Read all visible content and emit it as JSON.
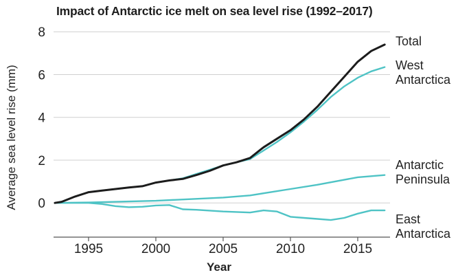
{
  "chart_data": {
    "type": "line",
    "title": "Impact of Antarctic ice melt on sea level rise (1992–2017)",
    "xlabel": "Year",
    "ylabel": "Average sea level rise (mm)",
    "xlim": [
      1992.4,
      2017.4
    ],
    "ylim": [
      -1.6,
      8.2
    ],
    "xticks": [
      1995,
      2000,
      2005,
      2010,
      2015
    ],
    "yticks": [
      0,
      2,
      4,
      6,
      8
    ],
    "grid": true,
    "legend": "direct labels at right",
    "series": [
      {
        "name": "Total",
        "color": "#1c1c1c",
        "label_lines": [
          "Total"
        ],
        "x": [
          1992.5,
          1993,
          1994,
          1995,
          1996,
          1997,
          1998,
          1999,
          2000,
          2001,
          2002,
          2003,
          2004,
          2005,
          2006,
          2007,
          2008,
          2009,
          2010,
          2011,
          2012,
          2013,
          2014,
          2015,
          2016,
          2017
        ],
        "y": [
          0,
          0.05,
          0.3,
          0.5,
          0.58,
          0.65,
          0.72,
          0.78,
          0.95,
          1.05,
          1.12,
          1.3,
          1.5,
          1.75,
          1.9,
          2.1,
          2.6,
          3.0,
          3.4,
          3.9,
          4.5,
          5.2,
          5.9,
          6.6,
          7.1,
          7.4
        ]
      },
      {
        "name": "West Antarctica",
        "color": "#4ec3c5",
        "label_lines": [
          "West",
          "Antarctica"
        ],
        "x": [
          1992.5,
          1993,
          1994,
          1995,
          1996,
          1997,
          1998,
          1999,
          2000,
          2001,
          2002,
          2003,
          2004,
          2005,
          2006,
          2007,
          2008,
          2009,
          2010,
          2011,
          2012,
          2013,
          2014,
          2015,
          2016,
          2017
        ],
        "y": [
          0,
          0.05,
          0.3,
          0.5,
          0.58,
          0.65,
          0.72,
          0.78,
          0.95,
          1.05,
          1.15,
          1.35,
          1.55,
          1.75,
          1.9,
          2.05,
          2.45,
          2.85,
          3.3,
          3.8,
          4.35,
          4.95,
          5.45,
          5.85,
          6.15,
          6.35
        ]
      },
      {
        "name": "Antarctic Peninsula",
        "color": "#4ec3c5",
        "label_lines": [
          "Antarctic",
          "Peninsula"
        ],
        "x": [
          1992.5,
          1995,
          2000,
          2005,
          2007,
          2010,
          2012,
          2015,
          2017
        ],
        "y": [
          0,
          0.02,
          0.1,
          0.25,
          0.35,
          0.65,
          0.85,
          1.2,
          1.3
        ]
      },
      {
        "name": "East Antarctica",
        "color": "#4ec3c5",
        "label_lines": [
          "East",
          "Antarctica"
        ],
        "x": [
          1992.5,
          1995,
          1996,
          1997,
          1998,
          1999,
          2000,
          2001,
          2002,
          2003,
          2005,
          2007,
          2008,
          2009,
          2010,
          2011,
          2012,
          2013,
          2014,
          2015,
          2016,
          2017
        ],
        "y": [
          0,
          0.0,
          -0.05,
          -0.15,
          -0.2,
          -0.18,
          -0.12,
          -0.1,
          -0.3,
          -0.32,
          -0.4,
          -0.45,
          -0.35,
          -0.4,
          -0.65,
          -0.7,
          -0.75,
          -0.8,
          -0.7,
          -0.5,
          -0.35,
          -0.35
        ]
      }
    ]
  }
}
